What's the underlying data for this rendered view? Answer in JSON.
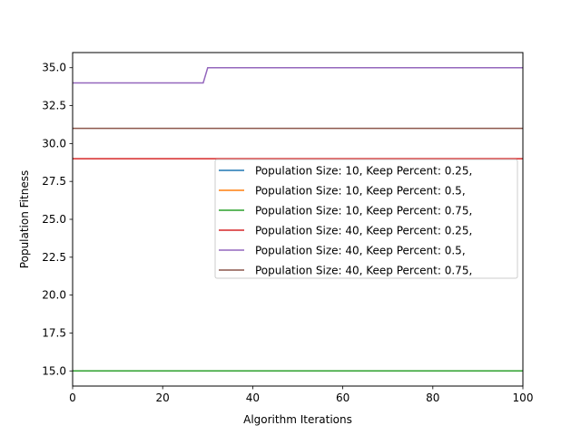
{
  "chart_data": {
    "type": "line",
    "title": "",
    "xlabel": "Algorithm Iterations",
    "ylabel": "Population Fitness",
    "xlim": [
      0,
      100
    ],
    "ylim": [
      14,
      36
    ],
    "xticks": [
      0,
      20,
      40,
      60,
      80,
      100
    ],
    "yticks": [
      15.0,
      17.5,
      20.0,
      22.5,
      25.0,
      27.5,
      30.0,
      32.5,
      35.0
    ],
    "ytick_labels": [
      "15.0",
      "17.5",
      "20.0",
      "22.5",
      "25.0",
      "27.5",
      "30.0",
      "32.5",
      "35.0"
    ],
    "grid": false,
    "legend_position": "center-right",
    "series": [
      {
        "name": "Population Size: 10, Keep Percent: 0.25,",
        "color": "#1f77b4",
        "points": [
          [
            0,
            15
          ],
          [
            100,
            15
          ]
        ]
      },
      {
        "name": "Population Size: 10, Keep Percent: 0.5,",
        "color": "#ff7f0e",
        "points": [
          [
            0,
            15
          ],
          [
            100,
            15
          ]
        ]
      },
      {
        "name": "Population Size: 10, Keep Percent: 0.75,",
        "color": "#2ca02c",
        "points": [
          [
            0,
            15
          ],
          [
            100,
            15
          ]
        ]
      },
      {
        "name": "Population Size: 40, Keep Percent: 0.25,",
        "color": "#d62728",
        "points": [
          [
            0,
            29
          ],
          [
            100,
            29
          ]
        ]
      },
      {
        "name": "Population Size: 40, Keep Percent: 0.5,",
        "color": "#9467bd",
        "points": [
          [
            0,
            34
          ],
          [
            29,
            34
          ],
          [
            30,
            35
          ],
          [
            100,
            35
          ]
        ]
      },
      {
        "name": "Population Size: 40, Keep Percent: 0.75,",
        "color": "#8c564b",
        "points": [
          [
            0,
            31
          ],
          [
            100,
            31
          ]
        ]
      }
    ]
  }
}
